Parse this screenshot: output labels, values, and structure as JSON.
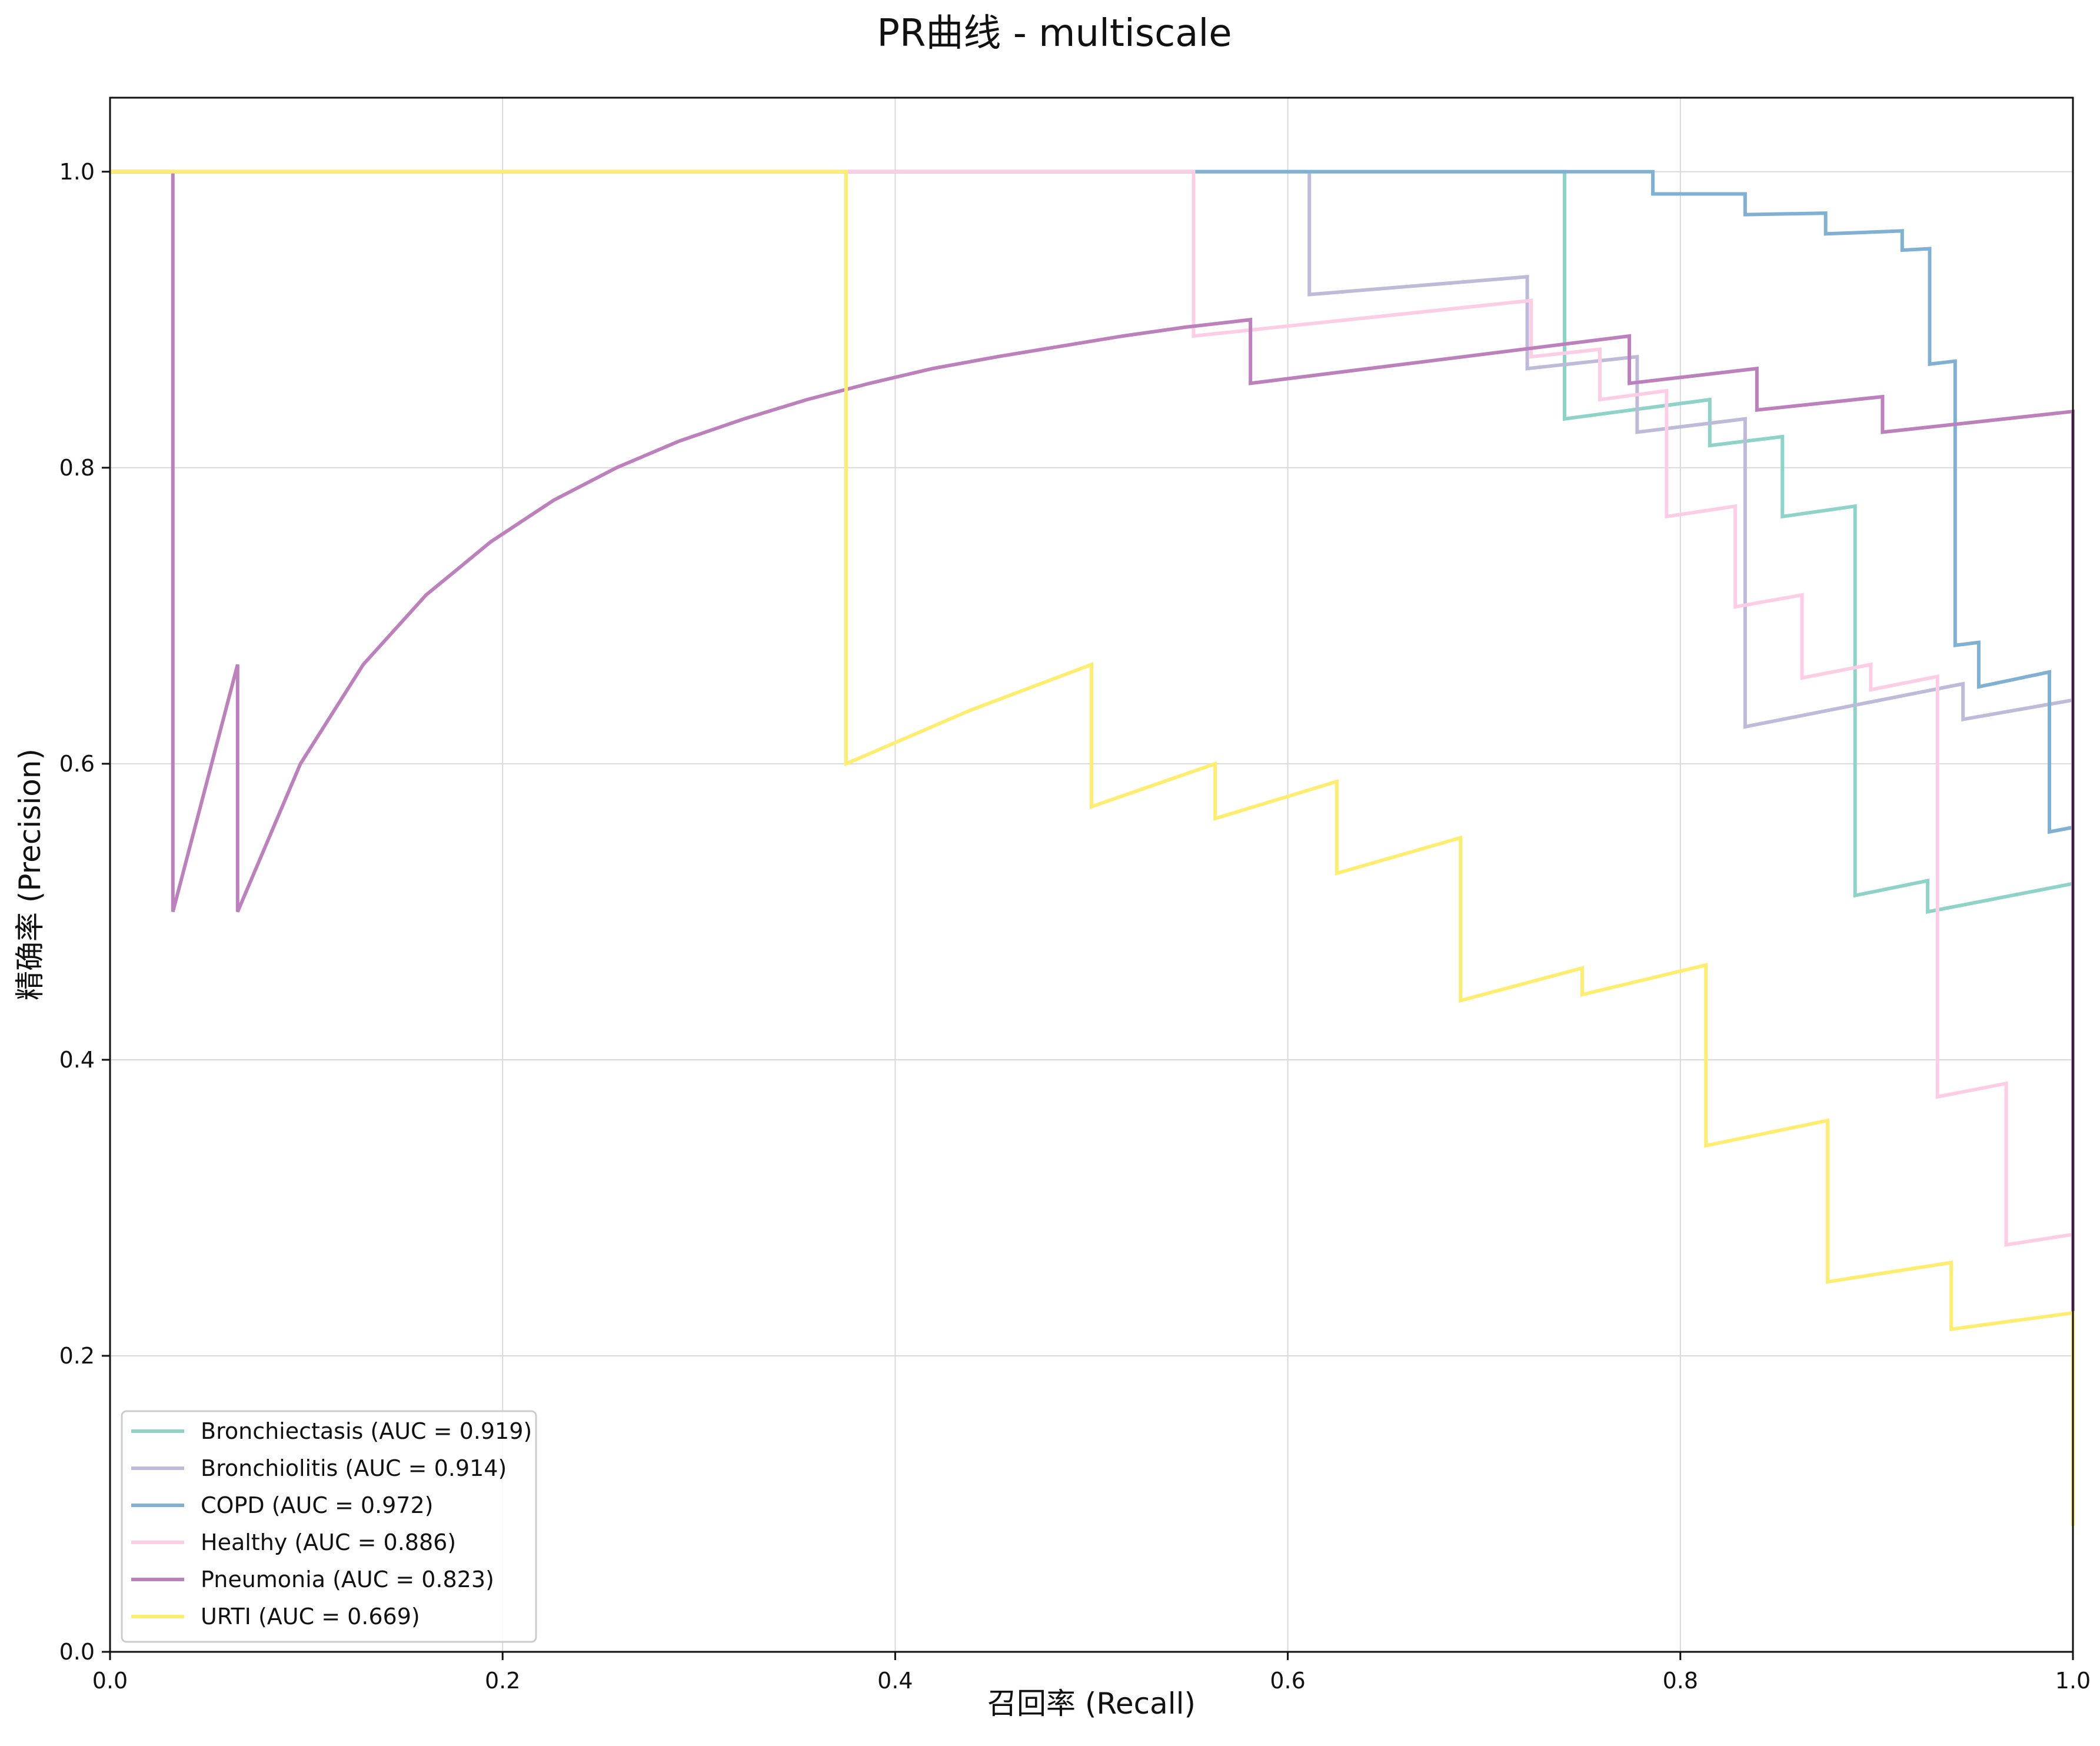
{
  "chart_data": {
    "type": "line",
    "title": "PR曲线 - multiscale",
    "xlabel": "召回率 (Recall)",
    "ylabel": "精确率 (Precision)",
    "xlim": [
      0,
      1
    ],
    "ylim": [
      0,
      1.05
    ],
    "xticks": [
      0,
      0.2,
      0.4,
      0.6,
      0.8,
      1.0
    ],
    "xtick_labels": [
      "0.0",
      "0.2",
      "0.4",
      "0.6",
      "0.8",
      "1.0"
    ],
    "yticks": [
      0,
      0.2,
      0.4,
      0.6,
      0.8,
      1.0
    ],
    "ytick_labels": [
      "0.0",
      "0.2",
      "0.4",
      "0.6",
      "0.8",
      "1.0"
    ],
    "grid": true,
    "legend_position": "lower-left",
    "series": [
      {
        "name": "Bronchiectasis (AUC = 0.919)",
        "color": "#8dd3c7",
        "points": [
          [
            0,
            1.0
          ],
          [
            0.741,
            1.0
          ],
          [
            0.741,
            0.833
          ],
          [
            0.815,
            0.846
          ],
          [
            0.815,
            0.815
          ],
          [
            0.852,
            0.821
          ],
          [
            0.852,
            0.767
          ],
          [
            0.889,
            0.774
          ],
          [
            0.889,
            0.511
          ],
          [
            0.926,
            0.521
          ],
          [
            0.926,
            0.5
          ],
          [
            1.0,
            0.519
          ]
        ]
      },
      {
        "name": "Bronchiolitis (AUC = 0.914)",
        "color": "#bebada",
        "points": [
          [
            0,
            1.0
          ],
          [
            0.611,
            1.0
          ],
          [
            0.611,
            0.917
          ],
          [
            0.722,
            0.929
          ],
          [
            0.722,
            0.867
          ],
          [
            0.778,
            0.875
          ],
          [
            0.778,
            0.824
          ],
          [
            0.833,
            0.833
          ],
          [
            0.833,
            0.625
          ],
          [
            0.944,
            0.654
          ],
          [
            0.944,
            0.63
          ],
          [
            1.0,
            0.643
          ]
        ]
      },
      {
        "name": "COPD (AUC = 0.972)",
        "color": "#80b1d3",
        "points": [
          [
            0,
            1.0
          ],
          [
            0.786,
            1.0
          ],
          [
            0.786,
            0.985
          ],
          [
            0.833,
            0.985
          ],
          [
            0.833,
            0.971
          ],
          [
            0.874,
            0.972
          ],
          [
            0.874,
            0.958
          ],
          [
            0.913,
            0.96
          ],
          [
            0.913,
            0.947
          ],
          [
            0.927,
            0.948
          ],
          [
            0.927,
            0.87
          ],
          [
            0.94,
            0.872
          ],
          [
            0.94,
            0.68
          ],
          [
            0.952,
            0.682
          ],
          [
            0.952,
            0.652
          ],
          [
            0.988,
            0.662
          ],
          [
            0.988,
            0.554
          ],
          [
            1.0,
            0.557
          ]
        ]
      },
      {
        "name": "Healthy (AUC = 0.886)",
        "color": "#fccde5",
        "points": [
          [
            0,
            1.0
          ],
          [
            0.552,
            1.0
          ],
          [
            0.552,
            0.889
          ],
          [
            0.724,
            0.913
          ],
          [
            0.724,
            0.875
          ],
          [
            0.759,
            0.88
          ],
          [
            0.759,
            0.846
          ],
          [
            0.793,
            0.852
          ],
          [
            0.793,
            0.767
          ],
          [
            0.828,
            0.774
          ],
          [
            0.828,
            0.706
          ],
          [
            0.862,
            0.714
          ],
          [
            0.862,
            0.658
          ],
          [
            0.897,
            0.667
          ],
          [
            0.897,
            0.65
          ],
          [
            0.931,
            0.659
          ],
          [
            0.931,
            0.375
          ],
          [
            0.966,
            0.384
          ],
          [
            0.966,
            0.275
          ],
          [
            1.0,
            0.282
          ]
        ]
      },
      {
        "name": "Pneumonia (AUC = 0.823)",
        "color": "#bc80bd",
        "points": [
          [
            0,
            1.0
          ],
          [
            0.032,
            1.0
          ],
          [
            0.032,
            0.5
          ],
          [
            0.065,
            0.667
          ],
          [
            0.065,
            0.5
          ],
          [
            0.097,
            0.6
          ],
          [
            0.129,
            0.667
          ],
          [
            0.161,
            0.714
          ],
          [
            0.194,
            0.75
          ],
          [
            0.226,
            0.778
          ],
          [
            0.258,
            0.8
          ],
          [
            0.29,
            0.818
          ],
          [
            0.323,
            0.833
          ],
          [
            0.355,
            0.846
          ],
          [
            0.387,
            0.857
          ],
          [
            0.419,
            0.867
          ],
          [
            0.452,
            0.875
          ],
          [
            0.484,
            0.882
          ],
          [
            0.516,
            0.889
          ],
          [
            0.548,
            0.895
          ],
          [
            0.581,
            0.9
          ],
          [
            0.581,
            0.857
          ],
          [
            0.774,
            0.889
          ],
          [
            0.774,
            0.857
          ],
          [
            0.839,
            0.867
          ],
          [
            0.839,
            0.839
          ],
          [
            0.903,
            0.848
          ],
          [
            0.903,
            0.824
          ],
          [
            1.0,
            0.838
          ],
          [
            1.0,
            0.22
          ]
        ]
      },
      {
        "name": "URTI (AUC = 0.669)",
        "color": "#ffed6f",
        "points": [
          [
            0,
            1.0
          ],
          [
            0.375,
            1.0
          ],
          [
            0.375,
            0.6
          ],
          [
            0.438,
            0.636
          ],
          [
            0.5,
            0.667
          ],
          [
            0.5,
            0.571
          ],
          [
            0.563,
            0.6
          ],
          [
            0.563,
            0.563
          ],
          [
            0.625,
            0.588
          ],
          [
            0.625,
            0.526
          ],
          [
            0.688,
            0.55
          ],
          [
            0.688,
            0.44
          ],
          [
            0.75,
            0.462
          ],
          [
            0.75,
            0.444
          ],
          [
            0.813,
            0.464
          ],
          [
            0.813,
            0.342
          ],
          [
            0.875,
            0.359
          ],
          [
            0.875,
            0.25
          ],
          [
            0.938,
            0.263
          ],
          [
            0.938,
            0.218
          ],
          [
            1.0,
            0.229
          ],
          [
            1.0,
            0.085
          ]
        ]
      }
    ]
  }
}
